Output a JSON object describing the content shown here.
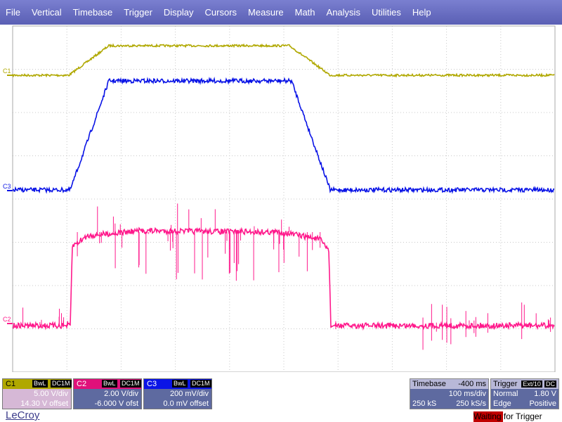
{
  "menu": [
    "File",
    "Vertical",
    "Timebase",
    "Trigger",
    "Display",
    "Cursors",
    "Measure",
    "Math",
    "Analysis",
    "Utilities",
    "Help"
  ],
  "traces": {
    "c1": {
      "label": "C1",
      "color": "#b0a800"
    },
    "c2": {
      "label": "C2",
      "color": "#ff1a8c"
    },
    "c3": {
      "label": "C3",
      "color": "#0a14e6"
    }
  },
  "channels": {
    "c1": {
      "label": "C1",
      "coupling": "DC1M",
      "bwl": "BwL",
      "scale": "5.00 V/div",
      "offset": "14.30 V offset",
      "color": "#b0a800"
    },
    "c2": {
      "label": "C2",
      "coupling": "DC1M",
      "bwl": "BwL",
      "scale": "2.00 V/div",
      "offset": "-6.000 V ofst",
      "color": "#e0107a"
    },
    "c3": {
      "label": "C3",
      "coupling": "DC1M",
      "bwl": "BwL",
      "scale": "200 mV/div",
      "offset": "0.0 mV offset",
      "color": "#0a14e6"
    }
  },
  "timebase": {
    "title": "Timebase",
    "delay": "-400 ms",
    "div": "100 ms/div",
    "samples": "250 kS",
    "rate": "250 kS/s"
  },
  "trigger": {
    "title": "Trigger",
    "source": "Ext/10",
    "coupling": "DC",
    "mode": "Normal",
    "level": "1.80 V",
    "type": "Edge",
    "slope": "Positive"
  },
  "logo": "LeCroy",
  "status": "Waiting for Trigger"
}
